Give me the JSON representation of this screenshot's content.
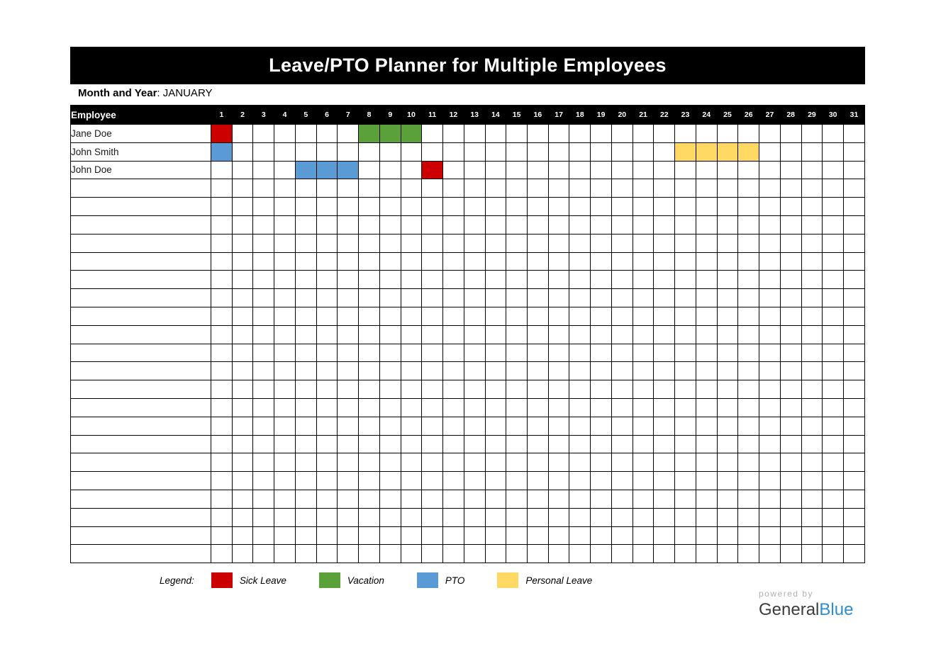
{
  "title": "Leave/PTO Planner for Multiple Employees",
  "month": {
    "label": "Month and Year",
    "separator": ": ",
    "value": "JANUARY"
  },
  "table": {
    "employee_header": "Employee",
    "days": [
      "1",
      "2",
      "3",
      "4",
      "5",
      "6",
      "7",
      "8",
      "9",
      "10",
      "11",
      "12",
      "13",
      "14",
      "15",
      "16",
      "17",
      "18",
      "19",
      "20",
      "21",
      "22",
      "23",
      "24",
      "25",
      "26",
      "27",
      "28",
      "29",
      "30",
      "31"
    ],
    "total_rows": 24,
    "rows": [
      {
        "name": "Jane Doe",
        "entries": [
          {
            "day": 1,
            "type": "sick"
          },
          {
            "day": 8,
            "type": "vacation"
          },
          {
            "day": 9,
            "type": "vacation"
          },
          {
            "day": 10,
            "type": "vacation"
          }
        ]
      },
      {
        "name": "John Smith",
        "entries": [
          {
            "day": 1,
            "type": "pto"
          },
          {
            "day": 23,
            "type": "personal"
          },
          {
            "day": 24,
            "type": "personal"
          },
          {
            "day": 25,
            "type": "personal"
          },
          {
            "day": 26,
            "type": "personal"
          }
        ]
      },
      {
        "name": "John Doe",
        "entries": [
          {
            "day": 5,
            "type": "pto"
          },
          {
            "day": 6,
            "type": "pto"
          },
          {
            "day": 7,
            "type": "pto"
          },
          {
            "day": 11,
            "type": "sick"
          }
        ]
      }
    ]
  },
  "legend": {
    "label": "Legend:",
    "items": [
      {
        "key": "sick",
        "label": "Sick Leave",
        "color": "#cc0000"
      },
      {
        "key": "vacation",
        "label": "Vacation",
        "color": "#5ba139"
      },
      {
        "key": "pto",
        "label": "PTO",
        "color": "#5b9bd5"
      },
      {
        "key": "personal",
        "label": "Personal Leave",
        "color": "#ffd964"
      }
    ]
  },
  "colors": {
    "sick": "#cc0000",
    "vacation": "#5ba139",
    "pto": "#5b9bd5",
    "personal": "#ffd964"
  },
  "footer": {
    "powered_by": "powered by",
    "brand_part1": "General",
    "brand_part2": "Blue"
  }
}
